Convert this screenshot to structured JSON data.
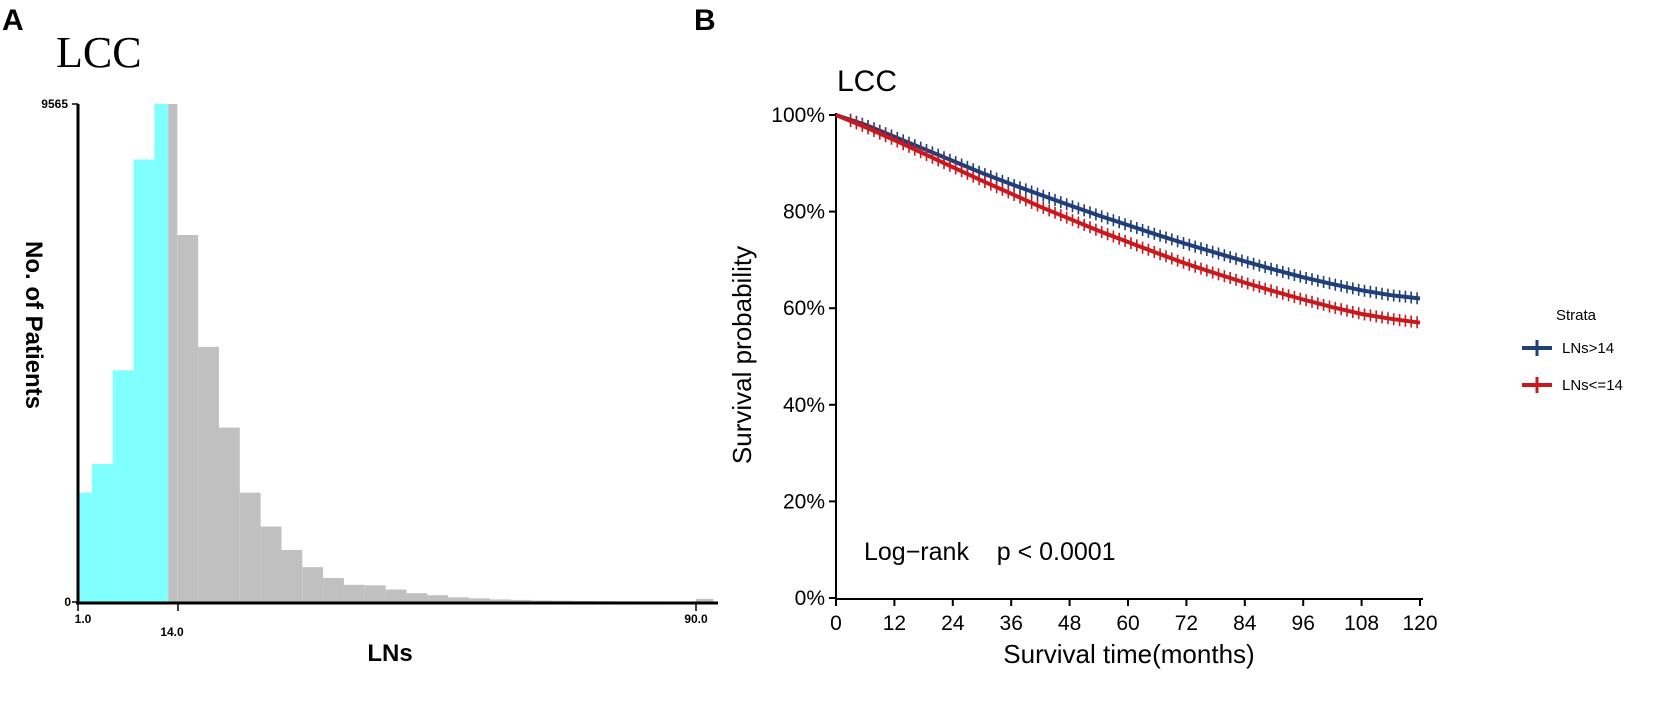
{
  "panels": {
    "a_letter": "A",
    "b_letter": "B"
  },
  "colors": {
    "below_cutoff": "#80FFFF",
    "above_cutoff": "#C0C0C0",
    "lns_gt_14": "#1F3E7A",
    "lns_le_14": "#C8191F"
  },
  "chart_data": [
    {
      "type": "bar",
      "title": "LCC",
      "xlabel": "LNs",
      "ylabel": "No. of Patients",
      "cutoff": 14,
      "ylim": [
        0,
        9565
      ],
      "y_tick_labels": [
        "9565",
        "0"
      ],
      "x_tick_labels": [
        "1.0",
        "14.0",
        "90.0"
      ],
      "bins": [
        {
          "start": 1.0,
          "end": 3.0,
          "value": 2100
        },
        {
          "start": 3.0,
          "end": 6.0,
          "value": 2650
        },
        {
          "start": 6.0,
          "end": 9.0,
          "value": 4450
        },
        {
          "start": 9.0,
          "end": 12.0,
          "value": 8500
        },
        {
          "start": 12.0,
          "end": 13.5,
          "value": 9565
        },
        {
          "start": 13.5,
          "end": 14.0,
          "value": 9565
        },
        {
          "start": 14.0,
          "end": 15.3,
          "value": 9565
        },
        {
          "start": 15.3,
          "end": 18.3,
          "value": 7050
        },
        {
          "start": 18.3,
          "end": 21.3,
          "value": 4900
        },
        {
          "start": 21.3,
          "end": 24.3,
          "value": 3350
        },
        {
          "start": 24.3,
          "end": 27.3,
          "value": 2100
        },
        {
          "start": 27.3,
          "end": 30.3,
          "value": 1450
        },
        {
          "start": 30.3,
          "end": 33.3,
          "value": 1000
        },
        {
          "start": 33.3,
          "end": 36.3,
          "value": 670
        },
        {
          "start": 36.3,
          "end": 39.3,
          "value": 460
        },
        {
          "start": 39.3,
          "end": 42.3,
          "value": 330
        },
        {
          "start": 42.3,
          "end": 45.3,
          "value": 320
        },
        {
          "start": 45.3,
          "end": 48.3,
          "value": 240
        },
        {
          "start": 48.3,
          "end": 51.3,
          "value": 170
        },
        {
          "start": 51.3,
          "end": 54.3,
          "value": 130
        },
        {
          "start": 54.3,
          "end": 57.3,
          "value": 90
        },
        {
          "start": 57.3,
          "end": 60.3,
          "value": 70
        },
        {
          "start": 60.3,
          "end": 63.3,
          "value": 50
        },
        {
          "start": 63.3,
          "end": 66.3,
          "value": 40
        },
        {
          "start": 66.3,
          "end": 69.3,
          "value": 30
        },
        {
          "start": 69.3,
          "end": 72.3,
          "value": 25
        },
        {
          "start": 72.3,
          "end": 75.3,
          "value": 20
        },
        {
          "start": 75.3,
          "end": 78.3,
          "value": 15
        },
        {
          "start": 78.3,
          "end": 81.3,
          "value": 12
        },
        {
          "start": 81.3,
          "end": 84.3,
          "value": 10
        },
        {
          "start": 84.3,
          "end": 87.3,
          "value": 8
        },
        {
          "start": 87.3,
          "end": 90.0,
          "value": 6
        },
        {
          "start": 90.0,
          "end": 92.5,
          "value": 60
        }
      ]
    },
    {
      "type": "line",
      "title": "LCC",
      "xlabel": "Survival time(months)",
      "ylabel": "Survival probability",
      "xlim": [
        0,
        120
      ],
      "ylim": [
        0,
        1
      ],
      "x_ticks": [
        0,
        12,
        24,
        36,
        48,
        60,
        72,
        84,
        96,
        108,
        120
      ],
      "x_tick_labels": [
        "0",
        "12",
        "24",
        "36",
        "48",
        "60",
        "72",
        "84",
        "96",
        "108",
        "120"
      ],
      "y_ticks": [
        0,
        0.2,
        0.4,
        0.6,
        0.8,
        1.0
      ],
      "y_tick_labels": [
        "0%",
        "20%",
        "40%",
        "60%",
        "80%",
        "100%"
      ],
      "legend_title": "Strata",
      "annotation": "Log−rank    p < 0.0001",
      "series": [
        {
          "name": "LNs>14",
          "x": [
            0,
            6,
            12,
            18,
            24,
            30,
            36,
            42,
            48,
            54,
            60,
            66,
            72,
            78,
            84,
            90,
            96,
            102,
            108,
            114,
            120
          ],
          "values": [
            1.0,
            0.98,
            0.955,
            0.93,
            0.905,
            0.88,
            0.857,
            0.835,
            0.813,
            0.792,
            0.772,
            0.752,
            0.733,
            0.715,
            0.697,
            0.68,
            0.664,
            0.65,
            0.637,
            0.627,
            0.62
          ]
        },
        {
          "name": "LNs<=14",
          "x": [
            0,
            6,
            12,
            18,
            24,
            30,
            36,
            42,
            48,
            54,
            60,
            66,
            72,
            78,
            84,
            90,
            96,
            102,
            108,
            114,
            120
          ],
          "values": [
            1.0,
            0.975,
            0.948,
            0.92,
            0.892,
            0.864,
            0.837,
            0.81,
            0.785,
            0.76,
            0.737,
            0.714,
            0.692,
            0.672,
            0.653,
            0.635,
            0.618,
            0.602,
            0.588,
            0.578,
            0.57
          ]
        }
      ]
    }
  ]
}
